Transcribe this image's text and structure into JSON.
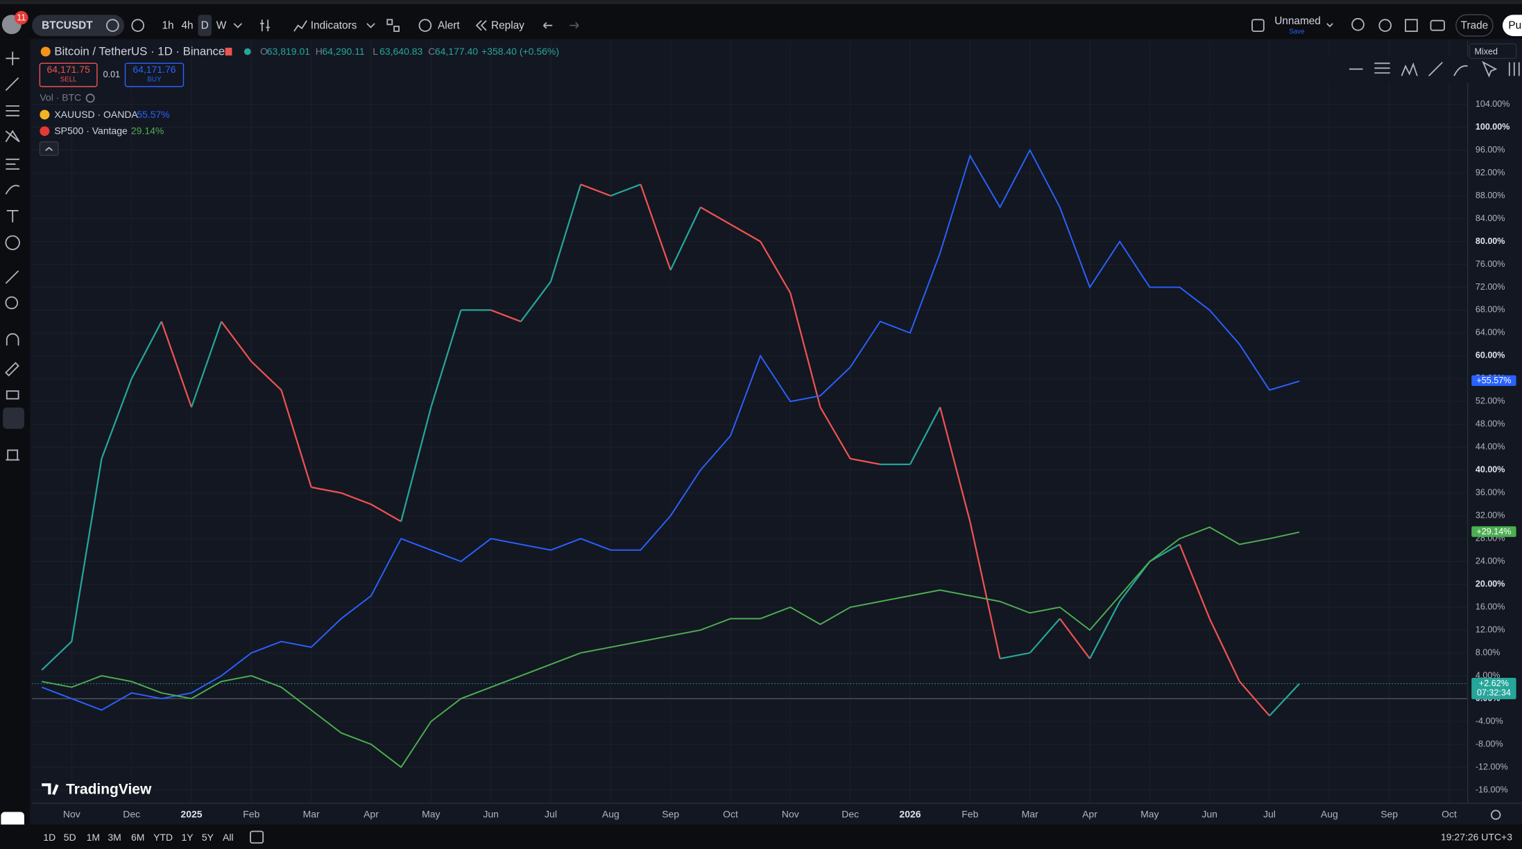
{
  "toolbar": {
    "badge": "11",
    "symbol": "BTCUSDT",
    "intervals": [
      "1h",
      "4h",
      "D",
      "W"
    ],
    "indicators": "Indicators",
    "alert": "Alert",
    "replay": "Replay",
    "layout_name": "Unnamed",
    "layout_save": "Save",
    "trade": "Trade",
    "publish": "Pu"
  },
  "legend": {
    "ohlc": [
      {
        "key": "O",
        "value": "63,819.01"
      },
      {
        "key": "H",
        "value": "64,290.11"
      },
      {
        "key": "L",
        "value": "63,640.83"
      },
      {
        "key": "C",
        "value": "64,177.40"
      }
    ],
    "change": "+358.40 (+0.56%)",
    "sell_price": "64,171.75",
    "sell": "SELL",
    "spread": "0.01",
    "buy_price": "64,171.76",
    "buy": "BUY",
    "volume": "Vol · BTC",
    "comparison_changes": [
      "55.57%",
      "29.14%"
    ]
  },
  "scale_mode": "Mixed",
  "watermark": "TradingView",
  "chart_data": {
    "type": "line",
    "categories": [
      null,
      "Nov",
      null,
      "Dec",
      null,
      "2025",
      null,
      "Feb",
      null,
      "Mar",
      null,
      "Apr",
      null,
      "May",
      null,
      "Jun",
      null,
      "Jul",
      null,
      "Aug",
      null,
      "Sep",
      null,
      "Oct",
      null,
      "Nov",
      null,
      "Dec",
      null,
      "2026",
      null,
      "Feb",
      null,
      "Mar",
      null,
      "Apr",
      null,
      "May",
      null,
      "Jun",
      null,
      "Jul",
      null,
      "Aug",
      null,
      "Sep",
      null,
      "Oct"
    ],
    "series": [
      {
        "name": "Bitcoin / TetherUS · 1D · Binance",
        "color": "#26a69a",
        "down_color": "#ef5350",
        "values": [
          5,
          10,
          42,
          56,
          66,
          51,
          66,
          59,
          54,
          37,
          36,
          34,
          31,
          51,
          68,
          68,
          66,
          73,
          90,
          88,
          90,
          75,
          86,
          83,
          80,
          71,
          51,
          42,
          41,
          41,
          51,
          31,
          7,
          8,
          14,
          7,
          17,
          24,
          27,
          14,
          3,
          -3,
          2.62,
          null,
          null,
          null,
          null,
          null
        ]
      },
      {
        "name": "XAUUSD · OANDA",
        "color": "#2962ff",
        "values": [
          2,
          0,
          -2,
          1,
          0,
          1,
          4,
          8,
          10,
          9,
          14,
          18,
          28,
          26,
          24,
          28,
          27,
          26,
          28,
          26,
          26,
          32,
          40,
          46,
          60,
          52,
          53,
          58,
          66,
          64,
          78,
          95,
          86,
          96,
          86,
          72,
          80,
          72,
          72,
          68,
          62,
          54,
          55.57,
          null,
          null,
          null,
          null,
          null
        ]
      },
      {
        "name": "SP500 · Vantage",
        "color": "#4caf50",
        "values": [
          3,
          2,
          4,
          3,
          1,
          0,
          3,
          4,
          2,
          -2,
          -6,
          -8,
          -12,
          -4,
          0,
          2,
          4,
          6,
          8,
          9,
          10,
          11,
          12,
          14,
          14,
          16,
          13,
          16,
          17,
          18,
          19,
          18,
          17,
          15,
          16,
          12,
          18,
          24,
          28,
          30,
          27,
          28,
          29.14,
          null,
          null,
          null,
          null,
          null
        ]
      }
    ],
    "ylim": [
      -18.3,
      115.1
    ],
    "yticks": [
      {
        "value": -16,
        "label": "-16.00%"
      },
      {
        "value": -12,
        "label": "-12.00%"
      },
      {
        "value": -8,
        "label": "-8.00%"
      },
      {
        "value": -4,
        "label": "-4.00%"
      },
      {
        "value": 0,
        "label": "0.00%"
      },
      {
        "value": 4,
        "label": "4.00%"
      },
      {
        "value": 8,
        "label": "8.00%"
      },
      {
        "value": 12,
        "label": "12.00%"
      },
      {
        "value": 16,
        "label": "16.00%"
      },
      {
        "value": 20,
        "label": "20.00%"
      },
      {
        "value": 24,
        "label": "24.00%"
      },
      {
        "value": 28,
        "label": "28.00%"
      },
      {
        "value": 32,
        "label": "32.00%"
      },
      {
        "value": 36,
        "label": "36.00%"
      },
      {
        "value": 40,
        "label": "40.00%"
      },
      {
        "value": 44,
        "label": "44.00%"
      },
      {
        "value": 48,
        "label": "48.00%"
      },
      {
        "value": 52,
        "label": "52.00%"
      },
      {
        "value": 56,
        "label": "56.00%"
      },
      {
        "value": 60,
        "label": "60.00%"
      },
      {
        "value": 64,
        "label": "64.00%"
      },
      {
        "value": 68,
        "label": "68.00%"
      },
      {
        "value": 72,
        "label": "72.00%"
      },
      {
        "value": 76,
        "label": "76.00%"
      },
      {
        "value": 80,
        "label": "80.00%"
      },
      {
        "value": 84,
        "label": "84.00%"
      },
      {
        "value": 88,
        "label": "88.00%"
      },
      {
        "value": 92,
        "label": "92.00%"
      },
      {
        "value": 96,
        "label": "96.00%"
      },
      {
        "value": 100,
        "label": "100.00%"
      },
      {
        "value": 104,
        "label": "104.00%"
      }
    ],
    "grid": true
  },
  "price_tags": [
    {
      "label": "+2.62%",
      "countdown": "07:32:34"
    },
    {
      "label": "+55.57%"
    },
    {
      "label": "+29.14%"
    }
  ],
  "bottom_bar": {
    "ranges": [
      "1D",
      "5D",
      "1M",
      "3M",
      "6M",
      "YTD",
      "1Y",
      "5Y",
      "All"
    ],
    "clock": "19:27:26 UTC+3"
  }
}
